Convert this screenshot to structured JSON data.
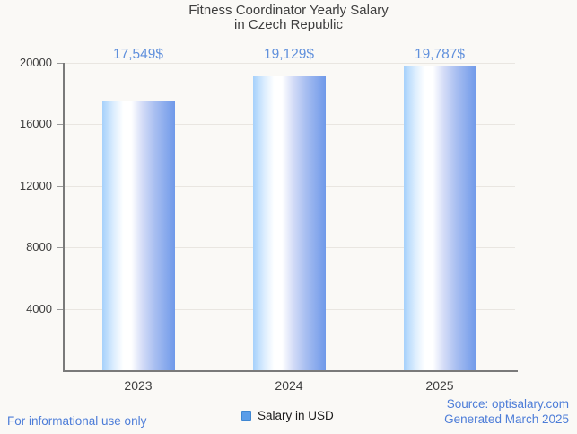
{
  "title": {
    "line1": "Fitness Coordinator Yearly Salary",
    "line2": "in Czech Republic"
  },
  "chart_data": {
    "type": "bar",
    "title": "Fitness Coordinator Yearly Salary in Czech Republic",
    "categories": [
      "2023",
      "2024",
      "2025"
    ],
    "values": [
      17549,
      19129,
      19787
    ],
    "value_labels": [
      "17,549$",
      "19,129$",
      "19,787$"
    ],
    "xlabel": "",
    "ylabel": "",
    "ylim": [
      0,
      20000
    ],
    "yticks": [
      4000,
      8000,
      12000,
      16000,
      20000
    ],
    "grid": true,
    "legend_position": "bottom",
    "legend_entries": [
      "Salary in USD"
    ]
  },
  "legend": {
    "label": "Salary in USD",
    "marker_color": "#5a9de8"
  },
  "footer": {
    "left": "For informational use only",
    "source": "Source: optisalary.com",
    "generated": "Generated March 2025"
  },
  "colors": {
    "background": "#faf9f6",
    "bar_gradient_left": "#a6d1fb",
    "bar_gradient_mid": "#ffffff",
    "bar_gradient_right": "#6f99e9",
    "value_label_text": "#6090dc",
    "footer_text": "#4d7dd8",
    "axis": "#7a7a7a",
    "grid_line": "#e9e6e1",
    "title_text": "#3e3e3e"
  }
}
